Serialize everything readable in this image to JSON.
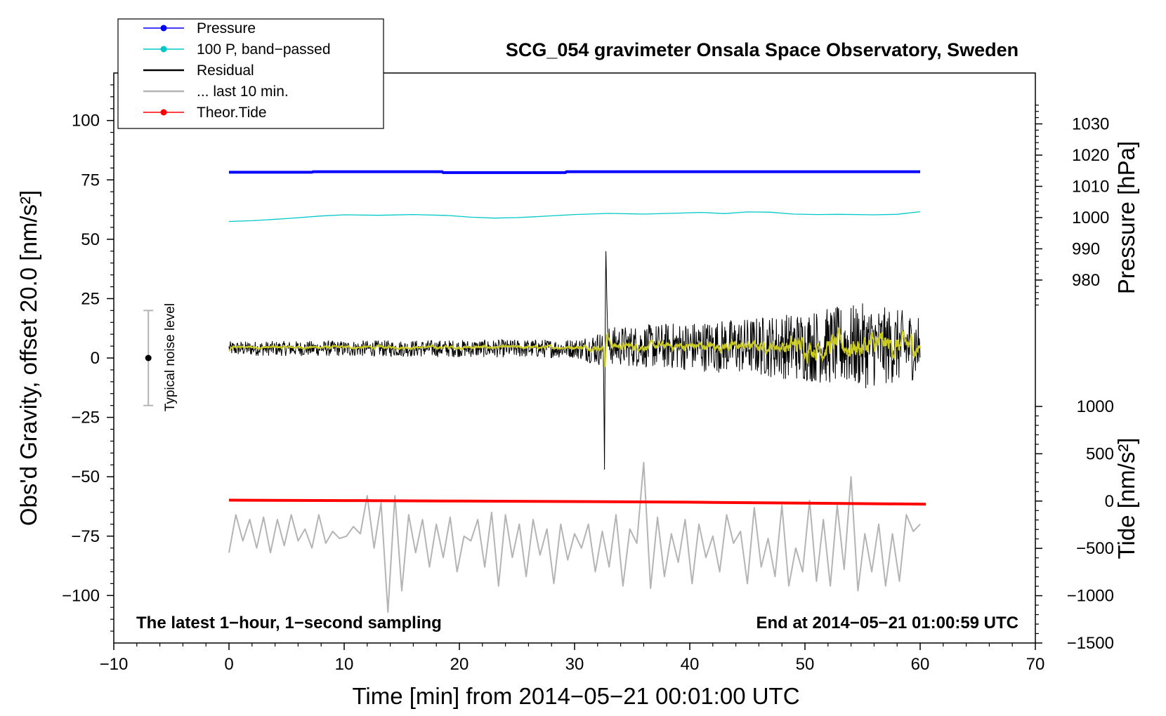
{
  "chart_data": {
    "type": "line",
    "title": "SCG_054 gravimeter Onsala Space Observatory, Sweden",
    "xlabel": "Time [min] from 2014−05−21 00:01:00 UTC",
    "ylabel_left": "Obs'd Gravity, offset 20.0 [nm/s²]",
    "ylabel_pressure": "Pressure [hPa]",
    "ylabel_tide": "Tide [nm/s²]",
    "xlim": [
      -10,
      70
    ],
    "ylim": [
      -120,
      120
    ],
    "pressure_lim": [
      968.3,
      1037.3
    ],
    "tide_lim": [
      -1500,
      1000
    ],
    "x_ticks": [
      -10,
      0,
      10,
      20,
      30,
      40,
      50,
      60,
      70
    ],
    "x_tick_labels": [
      "−10",
      "0",
      "10",
      "20",
      "30",
      "40",
      "50",
      "60",
      "70"
    ],
    "y_ticks": [
      100,
      75,
      50,
      25,
      0,
      -25,
      -50,
      -75,
      -100
    ],
    "y_tick_labels": [
      "100",
      "75",
      "50",
      "25",
      "0",
      "−25",
      "−50",
      "−75",
      "−100"
    ],
    "pressure_ticks": [
      1030,
      1020,
      1010,
      1000,
      990,
      980
    ],
    "pressure_tick_labels": [
      "1030",
      "1020",
      "1010",
      "1000",
      "990",
      "980"
    ],
    "tide_ticks": [
      1000,
      500,
      0,
      -500,
      -1000,
      -1500
    ],
    "tide_tick_labels": [
      "1000",
      "500",
      "0",
      "−500",
      "−1000",
      "−1500"
    ],
    "legend": [
      {
        "label": "Pressure",
        "color": "#0000ff",
        "marker": true
      },
      {
        "label": "100 P, band−passed",
        "color": "#00c8c8",
        "marker": true
      },
      {
        "label": "Residual",
        "color": "#000000",
        "marker": false
      },
      {
        "label": "... last 10 min.",
        "color": "#b4b4b4",
        "marker": false
      },
      {
        "label": "Theor.Tide",
        "color": "#ff0000",
        "marker": true
      }
    ],
    "legend_position": "top-left",
    "annotations": {
      "bottom_left": "The latest 1−hour, 1−second sampling",
      "bottom_right": "End at 2014−05−21 01:00:59 UTC",
      "noise_label": "Typical noise level"
    },
    "noise_level": {
      "x": -7,
      "center": 0,
      "low": -20,
      "high": 20
    },
    "series": [
      {
        "name": "Pressure",
        "color": "#0000ff",
        "axis": "pressure",
        "x": [
          0,
          7.2,
          7.3,
          18.5,
          18.6,
          29.2,
          29.3,
          60
        ],
        "values": [
          1014.5,
          1014.5,
          1014.7,
          1014.7,
          1014.4,
          1014.4,
          1014.7,
          1014.7
        ]
      },
      {
        "name": "100 P, band−passed",
        "color": "#00c8c8",
        "axis": "gravity",
        "x": [
          0,
          2,
          5,
          8,
          10,
          13,
          16,
          19,
          21,
          23,
          25,
          27,
          30,
          33,
          36,
          39,
          41,
          43,
          45,
          47,
          49,
          51,
          53,
          56,
          58,
          60
        ],
        "values": [
          57.5,
          57.8,
          58.7,
          59.8,
          60.3,
          60.1,
          60.4,
          60.0,
          59.3,
          58.9,
          59.1,
          59.6,
          60.4,
          60.9,
          60.6,
          61.0,
          61.3,
          60.8,
          61.5,
          61.4,
          60.6,
          60.4,
          60.5,
          60.3,
          60.5,
          61.6
        ]
      },
      {
        "name": "Residual",
        "color": "#000000",
        "axis": "gravity",
        "x": [
          0,
          32.5,
          32.6,
          32.7,
          32.8,
          32.9,
          60
        ],
        "values": [
          4,
          4,
          -47,
          50,
          25,
          5,
          5
        ],
        "noise_amplitude": {
          "x": [
            0,
            30,
            32.6,
            45,
            55,
            60
          ],
          "values": [
            3,
            4,
            8,
            12,
            18,
            14
          ]
        }
      },
      {
        "name": "... last 10 min.",
        "color": "#b4b4b4",
        "axis": "gravity",
        "x": [
          0,
          0.6,
          1.2,
          1.8,
          2.4,
          3.0,
          3.6,
          4.2,
          4.8,
          5.4,
          6.0,
          6.6,
          7.2,
          7.8,
          8.4,
          9.0,
          9.6,
          10.2,
          10.8,
          11.4,
          12.0,
          12.6,
          13.2,
          13.8,
          14.4,
          15.0,
          15.6,
          16.2,
          16.8,
          17.4,
          18.0,
          18.6,
          19.2,
          19.8,
          20.4,
          21.0,
          21.6,
          22.2,
          22.8,
          23.4,
          24.0,
          24.6,
          25.2,
          25.8,
          26.4,
          27.0,
          27.6,
          28.2,
          28.8,
          29.4,
          30.0,
          30.6,
          31.2,
          31.8,
          32.4,
          33.0,
          33.6,
          34.2,
          34.8,
          35.4,
          36.0,
          36.6,
          37.2,
          37.8,
          38.4,
          39.0,
          39.6,
          40.2,
          40.8,
          41.4,
          42.0,
          42.6,
          43.2,
          43.8,
          44.4,
          45.0,
          45.6,
          46.2,
          46.8,
          47.4,
          48.0,
          48.6,
          49.2,
          49.8,
          50.4,
          51.0,
          51.6,
          52.2,
          52.8,
          53.4,
          54.0,
          54.6,
          55.2,
          55.8,
          56.4,
          57.0,
          57.6,
          58.2,
          58.8,
          59.4,
          60.0
        ],
        "values": [
          -82,
          -66,
          -77,
          -68,
          -80,
          -67,
          -82,
          -68,
          -79,
          -66,
          -77,
          -72,
          -80,
          -66,
          -78,
          -73,
          -76,
          -75,
          -71,
          -74,
          -58,
          -80,
          -61,
          -107,
          -58,
          -98,
          -66,
          -82,
          -68,
          -88,
          -70,
          -84,
          -67,
          -90,
          -75,
          -77,
          -68,
          -88,
          -65,
          -96,
          -66,
          -84,
          -70,
          -92,
          -68,
          -83,
          -72,
          -95,
          -70,
          -85,
          -74,
          -80,
          -70,
          -90,
          -73,
          -88,
          -66,
          -96,
          -72,
          -78,
          -44,
          -97,
          -67,
          -92,
          -74,
          -86,
          -68,
          -95,
          -70,
          -84,
          -75,
          -90,
          -66,
          -78,
          -73,
          -95,
          -63,
          -88,
          -76,
          -92,
          -62,
          -96,
          -80,
          -90,
          -60,
          -94,
          -68,
          -96,
          -62,
          -89,
          -50,
          -98,
          -74,
          -90,
          -70,
          -96,
          -74,
          -94,
          -66,
          -73,
          -70
        ]
      },
      {
        "name": "Theor.Tide",
        "color": "#ff0000",
        "axis": "tide",
        "x": [
          0,
          10,
          20,
          30,
          40,
          50,
          60.5
        ],
        "values": [
          10,
          5,
          0,
          -5,
          -12,
          -22,
          -33
        ]
      }
    ]
  }
}
